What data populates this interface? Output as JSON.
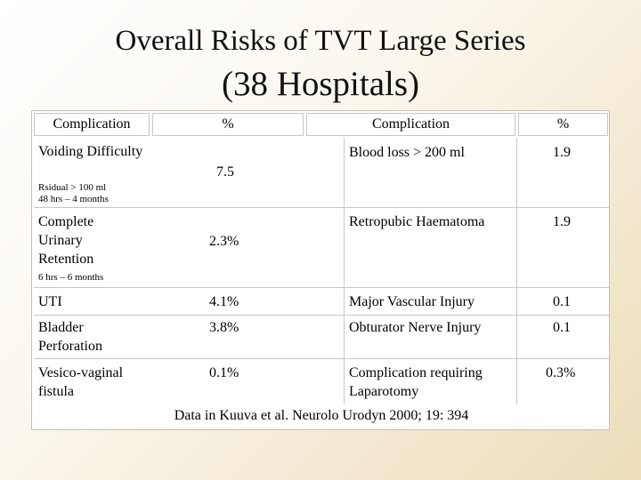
{
  "title": {
    "line1": "Overall Risks of TVT Large Series",
    "line2": "(38 Hospitals)"
  },
  "headers": [
    "Complication",
    "%",
    "Complication",
    "%"
  ],
  "rows": [
    {
      "left_label": "Voiding Difficulty",
      "left_sub1": "Rsidual > 100 ml",
      "left_sub2": "48 hrs – 4 months",
      "left_pct": "7.5",
      "right_label": "Blood loss > 200 ml",
      "right_pct": "1.9"
    },
    {
      "left_label": "Complete Urinary Retention",
      "left_sub1": "6 hrs – 6 months",
      "left_pct": "2.3%",
      "right_label": "Retropubic Haematoma",
      "right_pct": "1.9"
    },
    {
      "left_label": "UTI",
      "left_pct": "4.1%",
      "right_label": "Major Vascular Injury",
      "right_pct": "0.1"
    },
    {
      "left_label": "Bladder Perforation",
      "left_pct": "3.8%",
      "right_label": "Obturator Nerve Injury",
      "right_pct": "0.1"
    },
    {
      "left_label": "Vesico-vaginal fistula",
      "left_pct": "0.1%",
      "right_label": "Complication requiring Laparotomy",
      "right_pct": "0.3%"
    }
  ],
  "footnote": "Data in Kuuva et al. Neurolo Urodyn 2000; 19: 394"
}
